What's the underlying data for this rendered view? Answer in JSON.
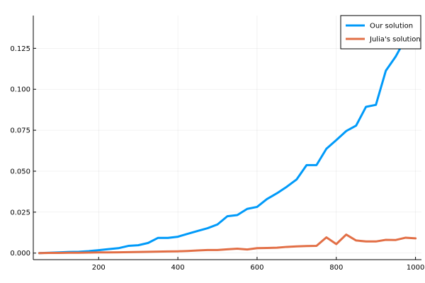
{
  "chart_data": {
    "type": "line",
    "title": "",
    "xlabel": "",
    "ylabel": "",
    "xlim": [
      35,
      1015
    ],
    "ylim": [
      -0.004,
      0.145
    ],
    "grid": true,
    "legend_position": "top-right",
    "x_ticks": [
      200,
      400,
      600,
      800,
      1000
    ],
    "x_tick_labels": [
      "200",
      "400",
      "600",
      "800",
      "1000"
    ],
    "y_ticks": [
      0.0,
      0.025,
      0.05,
      0.075,
      0.1,
      0.125
    ],
    "y_tick_labels": [
      "0.000",
      "0.025",
      "0.050",
      "0.075",
      "0.100",
      "0.125"
    ],
    "series": [
      {
        "name": "Our solution",
        "color": "#009af9",
        "x": [
          50,
          75,
          100,
          125,
          150,
          175,
          200,
          225,
          250,
          275,
          300,
          325,
          350,
          375,
          400,
          425,
          450,
          475,
          500,
          525,
          550,
          575,
          600,
          625,
          650,
          675,
          700,
          725,
          750,
          775,
          800,
          825,
          850,
          875,
          900,
          925,
          950,
          975,
          1000
        ],
        "y": [
          0.0,
          0.0002,
          0.0004,
          0.0007,
          0.0008,
          0.0012,
          0.0018,
          0.0024,
          0.003,
          0.0044,
          0.0048,
          0.0062,
          0.0093,
          0.0093,
          0.01,
          0.0118,
          0.0135,
          0.0152,
          0.0175,
          0.0225,
          0.0232,
          0.027,
          0.0282,
          0.033,
          0.0365,
          0.0405,
          0.045,
          0.0537,
          0.0537,
          0.0637,
          0.069,
          0.0745,
          0.0778,
          0.0893,
          0.0905,
          0.1113,
          0.12,
          0.131,
          0.142
        ]
      },
      {
        "name": "Julia's solution",
        "color": "#e26f46",
        "x": [
          50,
          75,
          100,
          125,
          150,
          175,
          200,
          225,
          250,
          275,
          300,
          325,
          350,
          375,
          400,
          425,
          450,
          475,
          500,
          525,
          550,
          575,
          600,
          625,
          650,
          675,
          700,
          725,
          750,
          775,
          800,
          825,
          850,
          875,
          900,
          925,
          950,
          975,
          1000
        ],
        "y": [
          0.0,
          0.0001,
          0.0001,
          0.0002,
          0.0002,
          0.0003,
          0.0004,
          0.0004,
          0.0005,
          0.0006,
          0.0007,
          0.0008,
          0.0009,
          0.001,
          0.0011,
          0.0013,
          0.0016,
          0.0019,
          0.0019,
          0.0023,
          0.0027,
          0.0022,
          0.003,
          0.0031,
          0.0033,
          0.0038,
          0.0041,
          0.0043,
          0.0044,
          0.0096,
          0.0055,
          0.0113,
          0.0077,
          0.0071,
          0.0071,
          0.0081,
          0.008,
          0.0094,
          0.009
        ]
      }
    ]
  }
}
